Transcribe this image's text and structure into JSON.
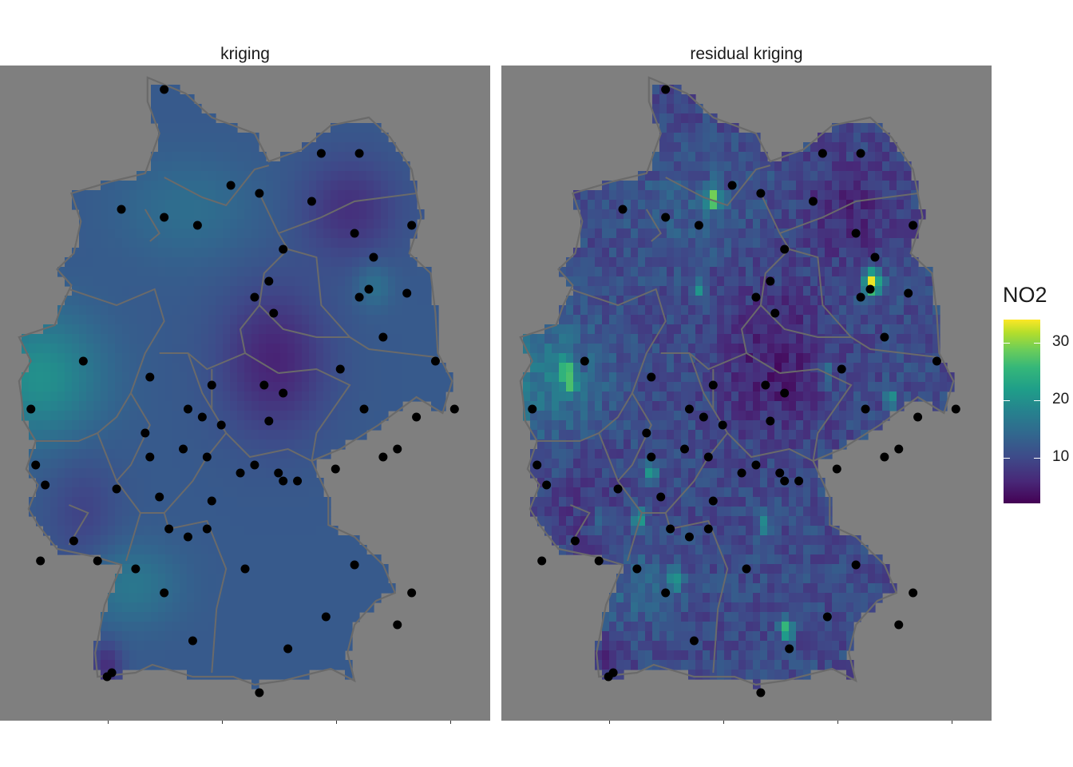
{
  "panels": [
    {
      "title": "kriging"
    },
    {
      "title": "residual kriging"
    }
  ],
  "legend": {
    "title": "NO2",
    "ticks": [
      {
        "value": 10,
        "label": "10"
      },
      {
        "value": 20,
        "label": "20"
      },
      {
        "value": 30,
        "label": "30"
      }
    ],
    "min": 2,
    "max": 34,
    "palette": "viridis"
  },
  "colors": {
    "background": "#7f7f7f",
    "border": "#6a6a6a",
    "station": "#000000",
    "low": "#440154",
    "high": "#fde725"
  },
  "map": {
    "country": "Germany",
    "stations": [
      [
        9.0,
        54.9
      ],
      [
        12.3,
        54.1
      ],
      [
        13.1,
        54.1
      ],
      [
        11.0,
        53.6
      ],
      [
        8.1,
        53.4
      ],
      [
        9.0,
        53.3
      ],
      [
        9.7,
        53.2
      ],
      [
        10.4,
        53.7
      ],
      [
        12.1,
        53.5
      ],
      [
        14.2,
        53.2
      ],
      [
        13.0,
        53.1
      ],
      [
        11.5,
        52.9
      ],
      [
        13.4,
        52.8
      ],
      [
        11.2,
        52.5
      ],
      [
        10.9,
        52.3
      ],
      [
        11.3,
        52.1
      ],
      [
        13.3,
        52.4
      ],
      [
        13.1,
        52.3
      ],
      [
        14.1,
        52.35
      ],
      [
        13.6,
        51.8
      ],
      [
        14.7,
        51.5
      ],
      [
        7.3,
        51.5
      ],
      [
        8.7,
        51.3
      ],
      [
        10.0,
        51.2
      ],
      [
        11.1,
        51.2
      ],
      [
        11.5,
        51.1
      ],
      [
        12.7,
        51.4
      ],
      [
        6.2,
        50.9
      ],
      [
        9.5,
        50.9
      ],
      [
        9.8,
        50.8
      ],
      [
        10.2,
        50.7
      ],
      [
        11.2,
        50.75
      ],
      [
        13.2,
        50.9
      ],
      [
        14.3,
        50.8
      ],
      [
        15.1,
        50.9
      ],
      [
        8.7,
        50.3
      ],
      [
        9.4,
        50.4
      ],
      [
        9.9,
        50.3
      ],
      [
        8.6,
        50.6
      ],
      [
        10.6,
        50.1
      ],
      [
        10.9,
        50.2
      ],
      [
        11.4,
        50.1
      ],
      [
        11.5,
        50.0
      ],
      [
        11.8,
        50.0
      ],
      [
        12.6,
        50.15
      ],
      [
        13.6,
        50.3
      ],
      [
        13.9,
        50.4
      ],
      [
        6.3,
        50.2
      ],
      [
        6.5,
        49.95
      ],
      [
        8.0,
        49.9
      ],
      [
        8.9,
        49.8
      ],
      [
        10.0,
        49.75
      ],
      [
        9.1,
        49.4
      ],
      [
        9.5,
        49.3
      ],
      [
        9.9,
        49.4
      ],
      [
        7.1,
        49.25
      ],
      [
        6.4,
        49.0
      ],
      [
        7.6,
        49.0
      ],
      [
        8.4,
        48.9
      ],
      [
        10.7,
        48.9
      ],
      [
        13.0,
        48.95
      ],
      [
        9.0,
        48.6
      ],
      [
        14.2,
        48.6
      ],
      [
        12.4,
        48.3
      ],
      [
        13.9,
        48.2
      ],
      [
        9.6,
        48.0
      ],
      [
        11.6,
        47.9
      ],
      [
        7.9,
        47.6
      ],
      [
        7.8,
        47.55
      ],
      [
        11.0,
        47.35
      ]
    ],
    "hotspots": [
      [
        13.35,
        52.5,
        1.0
      ],
      [
        10.0,
        53.55,
        0.75
      ],
      [
        6.9,
        51.4,
        0.55
      ],
      [
        7.0,
        51.2,
        0.45
      ],
      [
        8.7,
        50.1,
        0.45
      ],
      [
        9.2,
        48.75,
        0.45
      ],
      [
        11.55,
        48.15,
        0.55
      ],
      [
        11.1,
        49.45,
        0.35
      ],
      [
        8.45,
        49.5,
        0.4
      ],
      [
        9.7,
        52.4,
        0.35
      ],
      [
        12.4,
        51.35,
        0.3
      ],
      [
        13.75,
        51.05,
        0.3
      ],
      [
        7.6,
        49.5,
        0.25
      ]
    ]
  }
}
